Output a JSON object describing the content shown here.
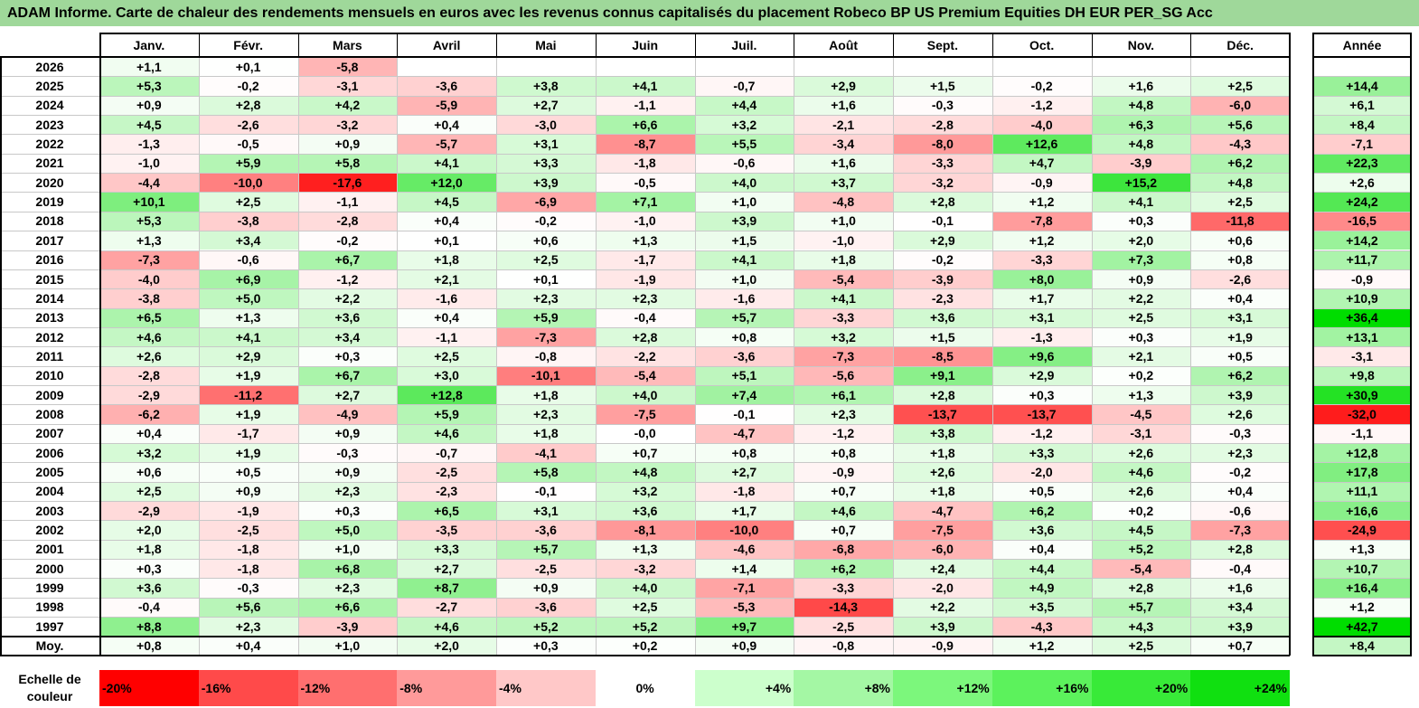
{
  "title": "ADAM Informe. Carte de chaleur des rendements mensuels en euros avec les revenus connus capitalisés du placement Robeco BP US Premium Equities DH EUR PER_SG Acc",
  "chart_data": {
    "type": "heatmap",
    "columns": [
      "Janv.",
      "Févr.",
      "Mars",
      "Avril",
      "Mai",
      "Juin",
      "Juil.",
      "Août",
      "Sept.",
      "Oct.",
      "Nov.",
      "Déc."
    ],
    "year_column_label": "Année",
    "rows": [
      {
        "label": "2026",
        "values": [
          "+1,1",
          "+0,1",
          "-5,8",
          "",
          "",
          "",
          "",
          "",
          "",
          "",
          "",
          ""
        ],
        "year": ""
      },
      {
        "label": "2025",
        "values": [
          "+5,3",
          "-0,2",
          "-3,1",
          "-3,6",
          "+3,8",
          "+4,1",
          "-0,7",
          "+2,9",
          "+1,5",
          "-0,2",
          "+1,6",
          "+2,5"
        ],
        "year": "+14,4"
      },
      {
        "label": "2024",
        "values": [
          "+0,9",
          "+2,8",
          "+4,2",
          "-5,9",
          "+2,7",
          "-1,1",
          "+4,4",
          "+1,6",
          "-0,3",
          "-1,2",
          "+4,8",
          "-6,0"
        ],
        "year": "+6,1"
      },
      {
        "label": "2023",
        "values": [
          "+4,5",
          "-2,6",
          "-3,2",
          "+0,4",
          "-3,0",
          "+6,6",
          "+3,2",
          "-2,1",
          "-2,8",
          "-4,0",
          "+6,3",
          "+5,6"
        ],
        "year": "+8,4"
      },
      {
        "label": "2022",
        "values": [
          "-1,3",
          "-0,5",
          "+0,9",
          "-5,7",
          "+3,1",
          "-8,7",
          "+5,5",
          "-3,4",
          "-8,0",
          "+12,6",
          "+4,8",
          "-4,3"
        ],
        "year": "-7,1"
      },
      {
        "label": "2021",
        "values": [
          "-1,0",
          "+5,9",
          "+5,8",
          "+4,1",
          "+3,3",
          "-1,8",
          "-0,6",
          "+1,6",
          "-3,3",
          "+4,7",
          "-3,9",
          "+6,2"
        ],
        "year": "+22,3"
      },
      {
        "label": "2020",
        "values": [
          "-4,4",
          "-10,0",
          "-17,6",
          "+12,0",
          "+3,9",
          "-0,5",
          "+4,0",
          "+3,7",
          "-3,2",
          "-0,9",
          "+15,2",
          "+4,8"
        ],
        "year": "+2,6"
      },
      {
        "label": "2019",
        "values": [
          "+10,1",
          "+2,5",
          "-1,1",
          "+4,5",
          "-6,9",
          "+7,1",
          "+1,0",
          "-4,8",
          "+2,8",
          "+1,2",
          "+4,1",
          "+2,5"
        ],
        "year": "+24,2"
      },
      {
        "label": "2018",
        "values": [
          "+5,3",
          "-3,8",
          "-2,8",
          "+0,4",
          "-0,2",
          "-1,0",
          "+3,9",
          "+1,0",
          "-0,1",
          "-7,8",
          "+0,3",
          "-11,8"
        ],
        "year": "-16,5"
      },
      {
        "label": "2017",
        "values": [
          "+1,3",
          "+3,4",
          "-0,2",
          "+0,1",
          "+0,6",
          "+1,3",
          "+1,5",
          "-1,0",
          "+2,9",
          "+1,2",
          "+2,0",
          "+0,6"
        ],
        "year": "+14,2"
      },
      {
        "label": "2016",
        "values": [
          "-7,3",
          "-0,6",
          "+6,7",
          "+1,8",
          "+2,5",
          "-1,7",
          "+4,1",
          "+1,8",
          "-0,2",
          "-3,3",
          "+7,3",
          "+0,8"
        ],
        "year": "+11,7"
      },
      {
        "label": "2015",
        "values": [
          "-4,0",
          "+6,9",
          "-1,2",
          "+2,1",
          "+0,1",
          "-1,9",
          "+1,0",
          "-5,4",
          "-3,9",
          "+8,0",
          "+0,9",
          "-2,6"
        ],
        "year": "-0,9"
      },
      {
        "label": "2014",
        "values": [
          "-3,8",
          "+5,0",
          "+2,2",
          "-1,6",
          "+2,3",
          "+2,3",
          "-1,6",
          "+4,1",
          "-2,3",
          "+1,7",
          "+2,2",
          "+0,4"
        ],
        "year": "+10,9"
      },
      {
        "label": "2013",
        "values": [
          "+6,5",
          "+1,3",
          "+3,6",
          "+0,4",
          "+5,9",
          "-0,4",
          "+5,7",
          "-3,3",
          "+3,6",
          "+3,1",
          "+2,5",
          "+3,1"
        ],
        "year": "+36,4"
      },
      {
        "label": "2012",
        "values": [
          "+4,6",
          "+4,1",
          "+3,4",
          "-1,1",
          "-7,3",
          "+2,8",
          "+0,8",
          "+3,2",
          "+1,5",
          "-1,3",
          "+0,3",
          "+1,9"
        ],
        "year": "+13,1"
      },
      {
        "label": "2011",
        "values": [
          "+2,6",
          "+2,9",
          "+0,3",
          "+2,5",
          "-0,8",
          "-2,2",
          "-3,6",
          "-7,3",
          "-8,5",
          "+9,6",
          "+2,1",
          "+0,5"
        ],
        "year": "-3,1"
      },
      {
        "label": "2010",
        "values": [
          "-2,8",
          "+1,9",
          "+6,7",
          "+3,0",
          "-10,1",
          "-5,4",
          "+5,1",
          "-5,6",
          "+9,1",
          "+2,9",
          "+0,2",
          "+6,2"
        ],
        "year": "+9,8"
      },
      {
        "label": "2009",
        "values": [
          "-2,9",
          "-11,2",
          "+2,7",
          "+12,8",
          "+1,8",
          "+4,0",
          "+7,4",
          "+6,1",
          "+2,8",
          "+0,3",
          "+1,3",
          "+3,9"
        ],
        "year": "+30,9"
      },
      {
        "label": "2008",
        "values": [
          "-6,2",
          "+1,9",
          "-4,9",
          "+5,9",
          "+2,3",
          "-7,5",
          "-0,1",
          "+2,3",
          "-13,7",
          "-13,7",
          "-4,5",
          "+2,6"
        ],
        "year": "-32,0"
      },
      {
        "label": "2007",
        "values": [
          "+0,4",
          "-1,7",
          "+0,9",
          "+4,6",
          "+1,8",
          "-0,0",
          "-4,7",
          "-1,2",
          "+3,8",
          "-1,2",
          "-3,1",
          "-0,3"
        ],
        "year": "-1,1"
      },
      {
        "label": "2006",
        "values": [
          "+3,2",
          "+1,9",
          "-0,3",
          "-0,7",
          "-4,1",
          "+0,7",
          "+0,8",
          "+0,8",
          "+1,8",
          "+3,3",
          "+2,6",
          "+2,3"
        ],
        "year": "+12,8"
      },
      {
        "label": "2005",
        "values": [
          "+0,6",
          "+0,5",
          "+0,9",
          "-2,5",
          "+5,8",
          "+4,8",
          "+2,7",
          "-0,9",
          "+2,6",
          "-2,0",
          "+4,6",
          "-0,2"
        ],
        "year": "+17,8"
      },
      {
        "label": "2004",
        "values": [
          "+2,5",
          "+0,9",
          "+2,3",
          "-2,3",
          "-0,1",
          "+3,2",
          "-1,8",
          "+0,7",
          "+1,8",
          "+0,5",
          "+2,6",
          "+0,4"
        ],
        "year": "+11,1"
      },
      {
        "label": "2003",
        "values": [
          "-2,9",
          "-1,9",
          "+0,3",
          "+6,5",
          "+3,1",
          "+3,6",
          "+1,7",
          "+4,6",
          "-4,7",
          "+6,2",
          "+0,2",
          "-0,6"
        ],
        "year": "+16,6"
      },
      {
        "label": "2002",
        "values": [
          "+2,0",
          "-2,5",
          "+5,0",
          "-3,5",
          "-3,6",
          "-8,1",
          "-10,0",
          "+0,7",
          "-7,5",
          "+3,6",
          "+4,5",
          "-7,3"
        ],
        "year": "-24,9"
      },
      {
        "label": "2001",
        "values": [
          "+1,8",
          "-1,8",
          "+1,0",
          "+3,3",
          "+5,7",
          "+1,3",
          "-4,6",
          "-6,8",
          "-6,0",
          "+0,4",
          "+5,2",
          "+2,8"
        ],
        "year": "+1,3"
      },
      {
        "label": "2000",
        "values": [
          "+0,3",
          "-1,8",
          "+6,8",
          "+2,7",
          "-2,5",
          "-3,2",
          "+1,4",
          "+6,2",
          "+2,4",
          "+4,4",
          "-5,4",
          "-0,4"
        ],
        "year": "+10,7"
      },
      {
        "label": "1999",
        "values": [
          "+3,6",
          "-0,3",
          "+2,3",
          "+8,7",
          "+0,9",
          "+4,0",
          "-7,1",
          "-3,3",
          "-2,0",
          "+4,9",
          "+2,8",
          "+1,6"
        ],
        "year": "+16,4"
      },
      {
        "label": "1998",
        "values": [
          "-0,4",
          "+5,6",
          "+6,6",
          "-2,7",
          "-3,6",
          "+2,5",
          "-5,3",
          "-14,3",
          "+2,2",
          "+3,5",
          "+5,7",
          "+3,4"
        ],
        "year": "+1,2"
      },
      {
        "label": "1997",
        "values": [
          "+8,8",
          "+2,3",
          "-3,9",
          "+4,6",
          "+5,2",
          "+5,2",
          "+9,7",
          "-2,5",
          "+3,9",
          "-4,3",
          "+4,3",
          "+3,9"
        ],
        "year": "+42,7"
      }
    ],
    "average_row": {
      "label": "Moy.",
      "values": [
        "+0,8",
        "+0,4",
        "+1,0",
        "+2,0",
        "+0,3",
        "+0,2",
        "+0,9",
        "-0,8",
        "-0,9",
        "+1,2",
        "+2,5",
        "+0,7"
      ],
      "year": "+8,4"
    },
    "scale": {
      "label": "Echelle de couleur",
      "steps": [
        {
          "text": "-20%",
          "color": "#ff0000"
        },
        {
          "text": "-16%",
          "color": "#ff4a4a"
        },
        {
          "text": "-12%",
          "color": "#ff6f6f"
        },
        {
          "text": "-8%",
          "color": "#ff9a9a"
        },
        {
          "text": "-4%",
          "color": "#ffc8c8"
        },
        {
          "text": "0%",
          "color": "#ffffff"
        },
        {
          "text": "+4%",
          "color": "#ccffcc"
        },
        {
          "text": "+8%",
          "color": "#a4f7a4"
        },
        {
          "text": "+12%",
          "color": "#7cf77c"
        },
        {
          "text": "+16%",
          "color": "#5cf25c"
        },
        {
          "text": "+20%",
          "color": "#38ea38"
        },
        {
          "text": "+24%",
          "color": "#10e010"
        }
      ]
    },
    "colors": {
      "negative_max": "#ff0000",
      "neutral": "#ffffff",
      "positive_max": "#00dd00",
      "header_bg": "#9fd89a"
    }
  }
}
